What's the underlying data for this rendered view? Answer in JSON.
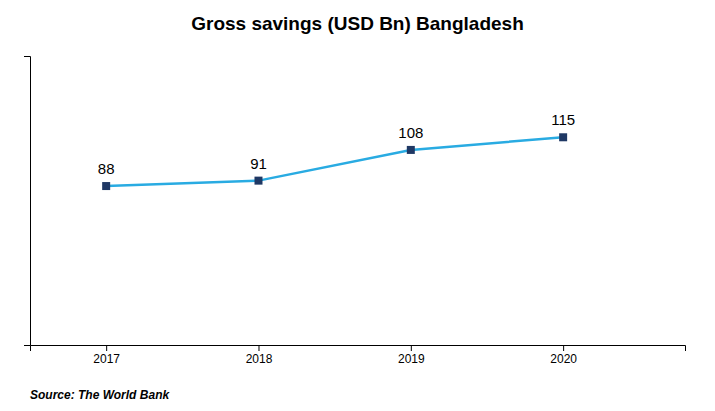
{
  "chart_data": {
    "type": "line",
    "title": "Gross savings (USD Bn) Bangladesh",
    "x": [
      2017,
      2018,
      2019,
      2020
    ],
    "values": [
      88,
      91,
      108,
      115
    ],
    "color": "#29ABE2",
    "colors": [
      "#1F3864",
      "#1F3864",
      "#1F3864",
      "#1F3864"
    ],
    "marker": "square",
    "line_style": "solid",
    "xlim": [
      2016.5,
      2020.8
    ],
    "xticks": [
      2017,
      2018,
      2019,
      2020
    ],
    "ylim": [
      0,
      160
    ],
    "tick_labels": "x",
    "grid": false,
    "data_labels": true,
    "annotations": [
      "Source: The World Bank"
    ]
  }
}
